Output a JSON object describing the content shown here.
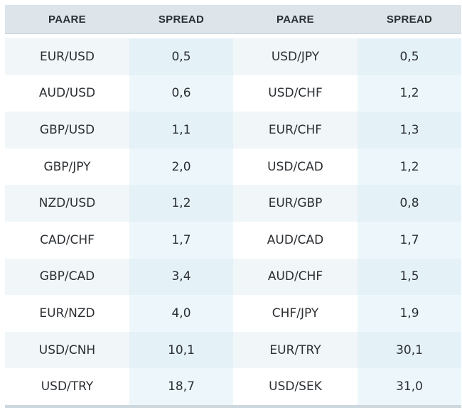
{
  "header": {
    "col1": "PAARE",
    "col2": "SPREAD",
    "col3": "PAARE",
    "col4": "SPREAD"
  },
  "rows": [
    {
      "pair_left": "EUR/USD",
      "spread_left": "0,5",
      "pair_right": "USD/JPY",
      "spread_right": "0,5"
    },
    {
      "pair_left": "AUD/USD",
      "spread_left": "0,6",
      "pair_right": "USD/CHF",
      "spread_right": "1,2"
    },
    {
      "pair_left": "GBP/USD",
      "spread_left": "1,1",
      "pair_right": "EUR/CHF",
      "spread_right": "1,3"
    },
    {
      "pair_left": "GBP/JPY",
      "spread_left": "2,0",
      "pair_right": "USD/CAD",
      "spread_right": "1,2"
    },
    {
      "pair_left": "NZD/USD",
      "spread_left": "1,2",
      "pair_right": "EUR/GBP",
      "spread_right": "0,8"
    },
    {
      "pair_left": "CAD/CHF",
      "spread_left": "1,7",
      "pair_right": "AUD/CAD",
      "spread_right": "1,7"
    },
    {
      "pair_left": "GBP/CAD",
      "spread_left": "3,4",
      "pair_right": "AUD/CHF",
      "spread_right": "1,5"
    },
    {
      "pair_left": "EUR/NZD",
      "spread_left": "4,0",
      "pair_right": "CHF/JPY",
      "spread_right": "1,9"
    },
    {
      "pair_left": "USD/CNH",
      "spread_left": "10,1",
      "pair_right": "EUR/TRY",
      "spread_right": "30,1"
    },
    {
      "pair_left": "USD/TRY",
      "spread_left": "18,7",
      "pair_right": "USD/SEK",
      "spread_right": "31,0"
    }
  ],
  "colors": {
    "header_bg": "#dde5ea",
    "row_odd_pair": "#f1f6f9",
    "row_odd_spread": "#e4f1f7",
    "row_even_pair": "#ffffff",
    "row_even_spread": "#edf7fb",
    "text": "#2b2f33"
  }
}
